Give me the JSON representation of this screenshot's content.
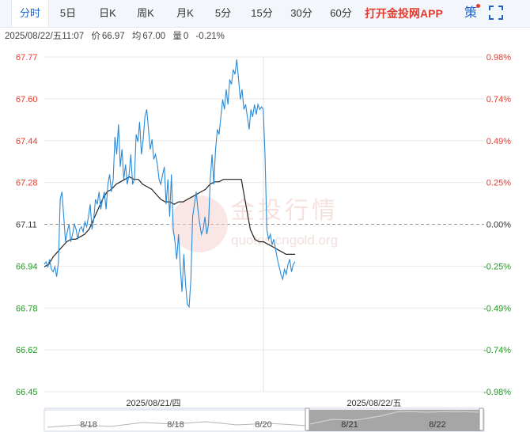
{
  "tabs": [
    {
      "label": "分时",
      "active": true
    },
    {
      "label": "5日"
    },
    {
      "label": "日K"
    },
    {
      "label": "周K"
    },
    {
      "label": "月K"
    },
    {
      "label": "5分"
    },
    {
      "label": "15分"
    },
    {
      "label": "30分"
    },
    {
      "label": "60分"
    }
  ],
  "app_link": "打开金投网APP",
  "strategy_label": "策",
  "info": {
    "datetime": "2025/08/22/五11:07",
    "price_label": "价",
    "price": "66.97",
    "avg_label": "均",
    "avg": "67.00",
    "volume_label": "量",
    "volume": "0",
    "change": "-0.21%"
  },
  "watermark": {
    "cn": "金投行情",
    "en": "quotes.cngold.org"
  },
  "colors": {
    "up": "#e63a2e",
    "down": "#1a9b1a",
    "price_line": "#2b8ad6",
    "avg_line": "#222222",
    "grid": "#e8e8e8"
  },
  "chart_data": {
    "type": "line",
    "ylim": [
      66.45,
      67.79
    ],
    "y_ticks": [
      "67.77",
      "67.60",
      "67.44",
      "67.28",
      "67.11",
      "66.94",
      "66.78",
      "66.62",
      "66.45"
    ],
    "pct_ticks": [
      "0.98%",
      "0.74%",
      "0.49%",
      "0.25%",
      "0.00%",
      "-0.25%",
      "-0.49%",
      "-0.74%",
      "-0.98%"
    ],
    "prev_close": 67.11,
    "session_labels": [
      "2025/08/21/四",
      "2025/08/22/五"
    ],
    "series": [
      {
        "values": [
          66.96,
          66.97,
          66.95,
          66.98,
          66.94,
          66.93,
          66.95,
          66.91,
          66.97,
          67.22,
          67.25,
          67.15,
          67.05,
          67.09,
          67.12,
          67.05,
          67.08,
          67.12,
          67.1,
          67.06,
          67.1,
          67.11,
          67.09,
          67.13,
          67.11,
          67.15,
          67.2,
          67.1,
          67.14,
          67.22,
          67.2,
          67.25,
          67.18,
          67.22,
          67.25,
          67.18,
          67.28,
          67.32,
          67.25,
          67.3,
          67.47,
          67.4,
          67.52,
          67.35,
          67.42,
          67.3,
          67.36,
          67.28,
          67.32,
          67.4,
          67.28,
          67.3,
          67.48,
          67.45,
          67.53,
          67.4,
          67.46,
          67.55,
          67.58,
          67.5,
          67.42,
          67.46,
          67.38,
          67.4,
          67.36,
          67.3,
          67.28,
          67.32,
          67.35,
          67.2,
          67.3,
          67.15,
          67.32,
          67.1,
          67.05,
          66.98,
          67.08,
          66.95,
          66.85,
          67.0,
          66.88,
          66.8,
          66.79,
          66.9,
          67.15,
          67.2,
          67.25,
          67.18,
          67.12,
          67.08,
          67.1,
          67.15,
          67.08,
          67.12,
          67.3,
          67.4,
          67.28,
          67.42,
          67.5,
          67.48,
          67.55,
          67.62,
          67.58,
          67.66,
          67.6,
          67.7,
          67.68,
          67.74,
          67.72,
          67.78,
          67.7,
          67.62,
          67.66,
          67.58,
          67.6,
          67.55,
          67.5,
          67.58,
          67.55,
          67.6,
          67.56,
          67.6,
          67.58,
          67.59,
          67.58,
          67.4,
          67.1,
          67.06,
          67.08,
          67.04,
          67.06,
          67.02,
          66.98,
          66.95,
          66.92,
          66.9,
          66.94,
          66.92,
          66.96,
          66.98,
          66.93,
          66.96,
          66.97
        ]
      },
      {
        "values": [
          66.95,
          66.96,
          66.99,
          67.01,
          67.03,
          67.05,
          67.06,
          67.06,
          67.07,
          67.08,
          67.1,
          67.14,
          67.18,
          67.22,
          67.25,
          67.26,
          67.28,
          67.29,
          67.3,
          67.31,
          67.3,
          67.3,
          67.28,
          67.27,
          67.26,
          67.24,
          67.22,
          67.21,
          67.21,
          67.2,
          67.21,
          67.21,
          67.22,
          67.23,
          67.24,
          67.25,
          67.26,
          67.28,
          67.29,
          67.29,
          67.3,
          67.3,
          67.3,
          67.3,
          67.3,
          67.2,
          67.1,
          67.06,
          67.05,
          67.05,
          67.04,
          67.03,
          67.02,
          67.01,
          67.0,
          67.0,
          67.0
        ]
      }
    ],
    "navigator_labels": [
      "8/18",
      "8/18",
      "8/20",
      "8/21",
      "8/22"
    ]
  }
}
